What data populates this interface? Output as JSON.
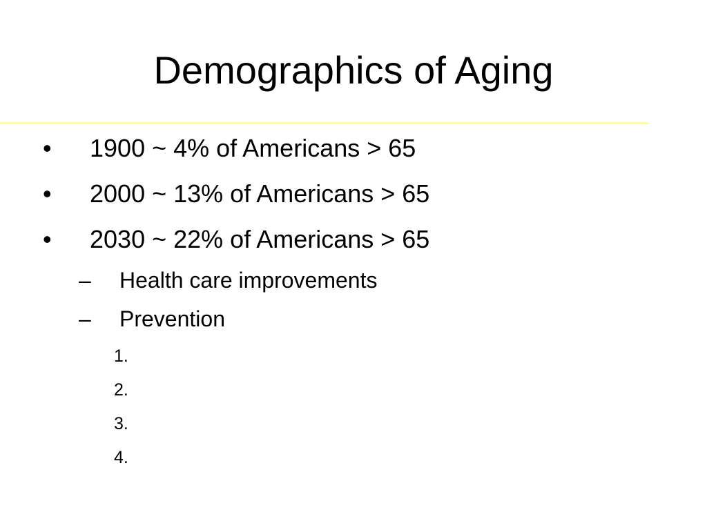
{
  "slide": {
    "title": "Demographics of Aging",
    "bullets": [
      {
        "marker": "•",
        "text": "1900 ~ 4% of Americans > 65"
      },
      {
        "marker": "•",
        "text": "2000 ~ 13% of Americans > 65"
      },
      {
        "marker": "•",
        "text": "2030 ~ 22% of Americans > 65"
      }
    ],
    "sub_bullets": [
      {
        "marker": "–",
        "text": "Health care improvements"
      },
      {
        "marker": "–",
        "text": "Prevention"
      }
    ],
    "numbered_items": [
      {
        "marker": "1."
      },
      {
        "marker": "2."
      },
      {
        "marker": "3."
      },
      {
        "marker": "4."
      }
    ],
    "colors": {
      "background": "#ffffff",
      "text": "#000000",
      "title_rule": "#ffffa0"
    }
  }
}
